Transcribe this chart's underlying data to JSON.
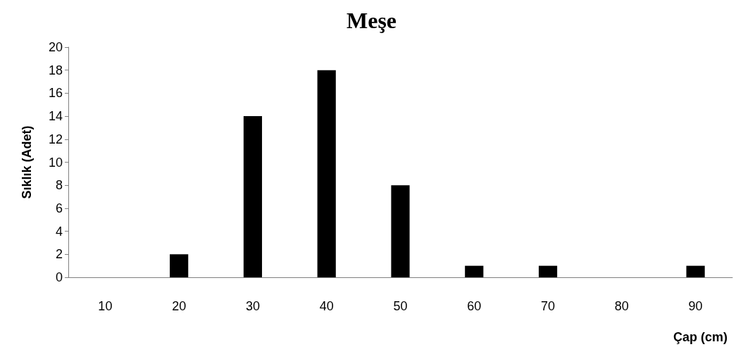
{
  "chart_data": {
    "type": "bar",
    "title": "Meşe",
    "xlabel": "Çap (cm)",
    "ylabel": "Sıklık (Adet)",
    "categories": [
      "10",
      "20",
      "30",
      "40",
      "50",
      "60",
      "70",
      "80",
      "90"
    ],
    "values": [
      0,
      2,
      14,
      18,
      8,
      1,
      1,
      0,
      1
    ],
    "color": "#000000",
    "ylim": [
      0,
      20
    ],
    "yticks": [
      0,
      2,
      4,
      6,
      8,
      10,
      12,
      14,
      16,
      18,
      20
    ],
    "grid": false
  }
}
